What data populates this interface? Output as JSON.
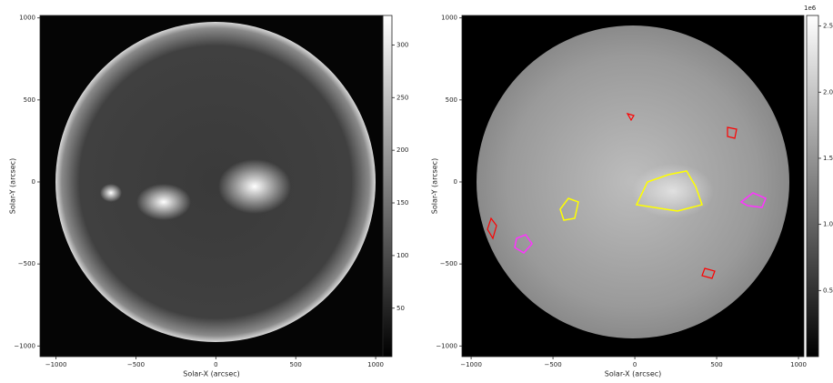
{
  "chart_data": [
    {
      "type": "image",
      "xlabel": "Solar-X (arcsec)",
      "ylabel": "Solar-Y (arcsec)",
      "xlim": [
        -1100,
        1045
      ],
      "ylim": [
        -1065,
        1015
      ],
      "xticks": [
        {
          "value": -1000,
          "label": "−1000"
        },
        {
          "value": -500,
          "label": "−500"
        },
        0,
        500,
        1000
      ],
      "yticks": [
        {
          "value": -1000,
          "label": "−1000"
        },
        {
          "value": -500,
          "label": "−500"
        },
        0,
        500,
        1000
      ],
      "colorbar": {
        "clim": [
          4,
          328
        ],
        "ticks": [
          50,
          100,
          150,
          200,
          250,
          300
        ]
      }
    },
    {
      "type": "image",
      "xlabel": "Solar-X (arcsec)",
      "ylabel": "Solar-Y (arcsec)",
      "xlim": [
        -1056,
        1033
      ],
      "ylim": [
        -1065,
        1015
      ],
      "xticks": [
        {
          "value": -1000,
          "label": "−1000"
        },
        {
          "value": -500,
          "label": "−500"
        },
        0,
        500,
        1000
      ],
      "yticks": [
        {
          "value": -1000,
          "label": "−1000"
        },
        {
          "value": -500,
          "label": "−500"
        },
        0,
        500,
        1000
      ],
      "colorbar": {
        "clim": [
          0,
          2.58
        ],
        "offset_label": "1e6",
        "ticks": [
          0.5,
          {
            "value": 1.0,
            "label": "1.0"
          },
          1.5,
          {
            "value": 2.0,
            "label": "2.0"
          },
          2.5
        ]
      }
    }
  ]
}
